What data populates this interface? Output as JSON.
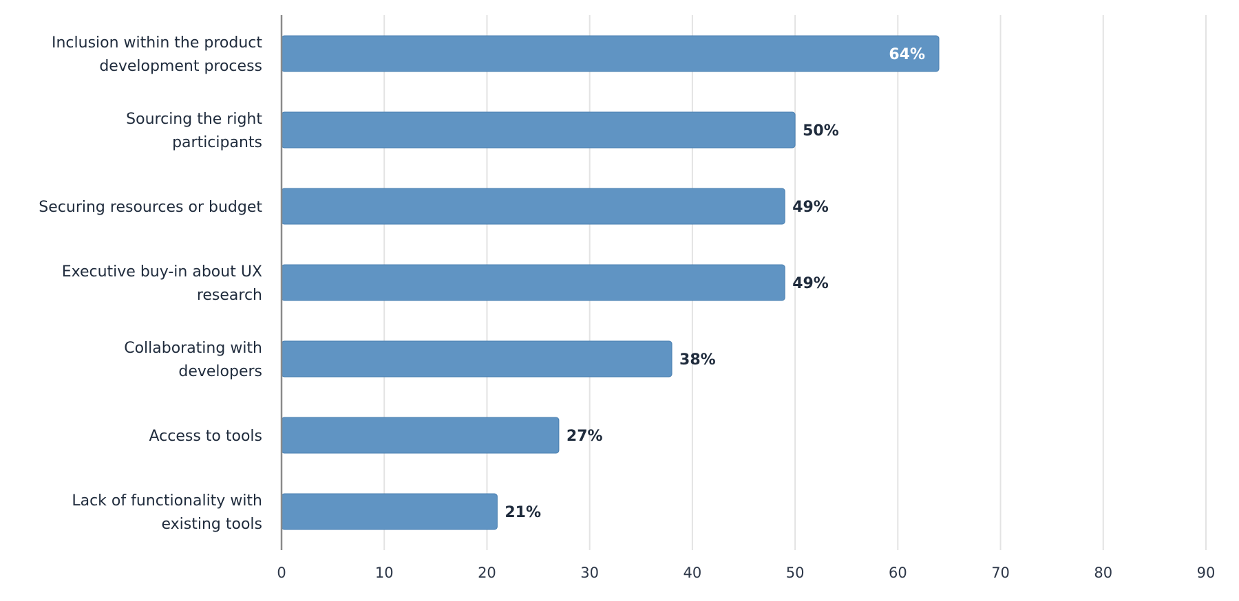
{
  "chart_data": {
    "type": "bar",
    "orientation": "horizontal",
    "categories": [
      [
        "Inclusion within the product",
        "development process"
      ],
      [
        "Sourcing the right",
        "participants"
      ],
      [
        "Securing resources or budget"
      ],
      [
        "Executive buy-in about UX",
        "research"
      ],
      [
        "Collaborating with",
        "developers"
      ],
      [
        "Access to tools"
      ],
      [
        "Lack of functionality with",
        "existing tools"
      ]
    ],
    "values": [
      64,
      50,
      49,
      49,
      38,
      27,
      21
    ],
    "value_labels": [
      "64%",
      "50%",
      "49%",
      "49%",
      "38%",
      "27%",
      "21%"
    ],
    "xlim": [
      0,
      90
    ],
    "xticks": [
      0,
      10,
      20,
      30,
      40,
      50,
      60,
      70,
      80,
      90
    ],
    "grid": "vertical",
    "title": "",
    "xlabel": "",
    "ylabel": "",
    "colors": {
      "bar": "#6094c3",
      "bar_edge": "#4a7fb0",
      "grid": "#e3e3e3",
      "axis": "#8a8a8a",
      "label_dark": "#1f2b3c",
      "label_inside": "#ffffff"
    }
  }
}
